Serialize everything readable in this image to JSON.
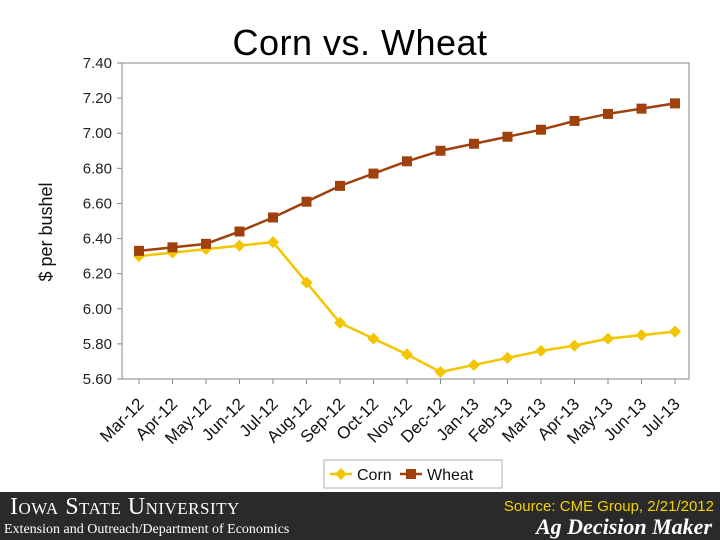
{
  "slide": {
    "title": "Corn vs. Wheat"
  },
  "chart_data": {
    "type": "line",
    "title": "Corn vs. Wheat",
    "xlabel": "",
    "ylabel": "$ per bushel",
    "categories": [
      "Mar-12",
      "Apr-12",
      "May-12",
      "Jun-12",
      "Jul-12",
      "Aug-12",
      "Sep-12",
      "Oct-12",
      "Nov-12",
      "Dec-12",
      "Jan-13",
      "Feb-13",
      "Mar-13",
      "Apr-13",
      "May-13",
      "Jun-13",
      "Jul-13"
    ],
    "yticks": [
      "7.40",
      "7.20",
      "7.00",
      "6.80",
      "6.60",
      "6.40",
      "6.20",
      "6.00",
      "5.80",
      "5.60"
    ],
    "ylim": [
      5.6,
      7.4
    ],
    "grid": false,
    "legend_position": "bottom",
    "series": [
      {
        "name": "Corn",
        "color": "#f2c500",
        "marker": "diamond",
        "values": [
          6.3,
          6.32,
          6.34,
          6.36,
          6.38,
          6.15,
          5.92,
          5.83,
          5.74,
          5.64,
          5.68,
          5.72,
          5.76,
          5.79,
          5.83,
          5.85,
          5.87
        ]
      },
      {
        "name": "Wheat",
        "color": "#a0410d",
        "marker": "square",
        "values": [
          6.33,
          6.35,
          6.37,
          6.44,
          6.52,
          6.61,
          6.7,
          6.77,
          6.84,
          6.9,
          6.94,
          6.98,
          7.02,
          7.07,
          7.11,
          7.14,
          7.17
        ]
      }
    ]
  },
  "footer": {
    "brand": "Iowa State University",
    "department": "Extension and Outreach/Department of Economics",
    "source": "Source: CME Group, 2/21/2012",
    "product": "Ag Decision Maker"
  }
}
